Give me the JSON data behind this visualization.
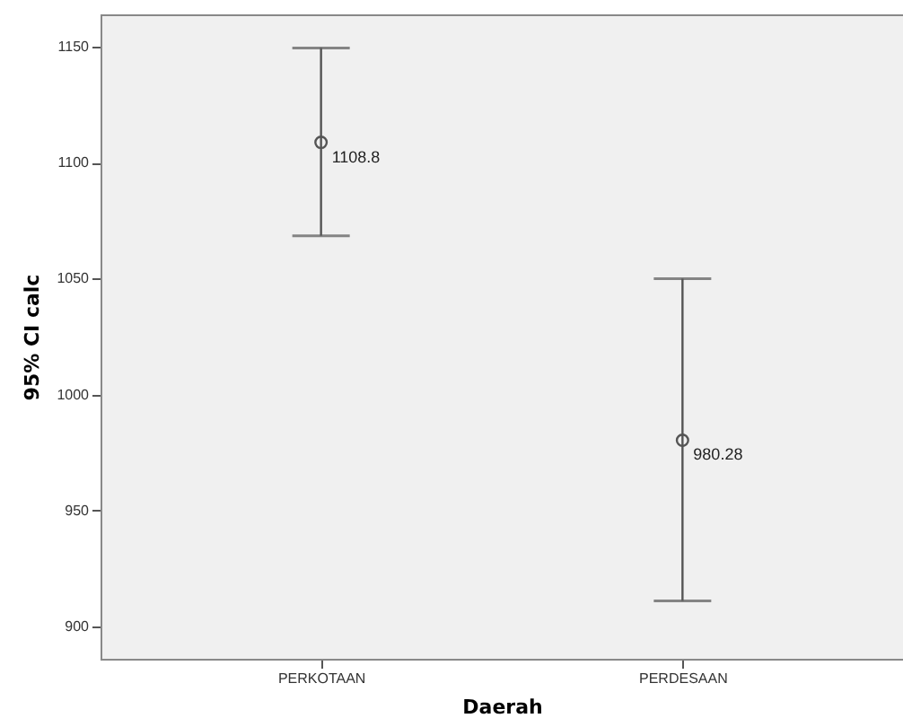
{
  "chart_data": {
    "type": "scatter",
    "xlabel": "Daerah",
    "ylabel": "95% CI calc",
    "categories": [
      "PERKOTAAN",
      "PERDESAAN"
    ],
    "series": [
      {
        "color": "#555555",
        "values": [
          1108.8,
          980.28
        ],
        "errors": [
          [
            1068.5,
            1149.5
          ],
          [
            911,
            1050
          ]
        ]
      }
    ],
    "ylim": [
      886,
      1164
    ],
    "yticks": [
      900,
      950,
      1000,
      1050,
      1100,
      1150
    ],
    "marker": "circle",
    "data_labels": true,
    "grid": false
  }
}
